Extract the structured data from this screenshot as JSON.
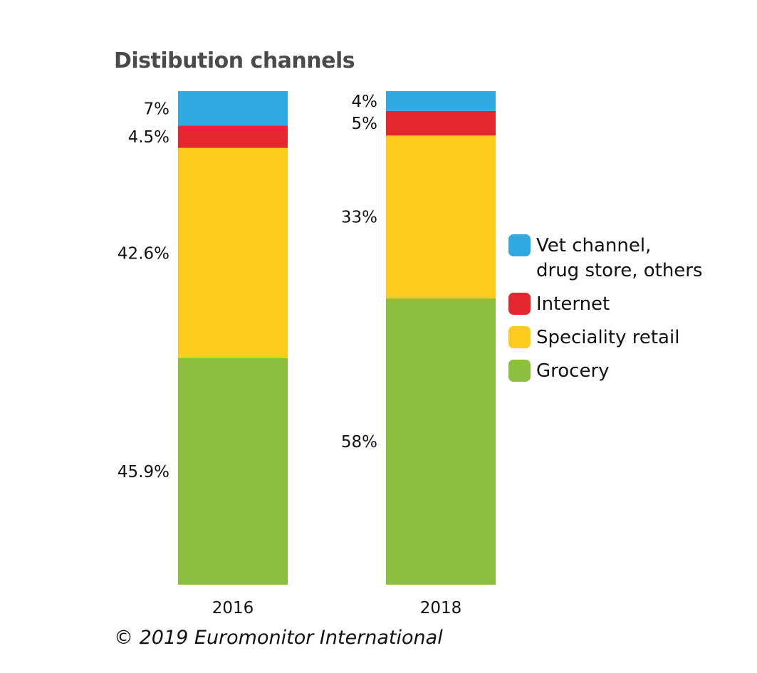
{
  "chart_data": {
    "type": "bar",
    "stacked": true,
    "title": "Distibution channels",
    "categories": [
      "2016",
      "2018"
    ],
    "series": [
      {
        "name": "Grocery",
        "color": "#8cbf3f",
        "values": [
          45.9,
          58
        ],
        "labels": [
          "45.9%",
          "58%"
        ]
      },
      {
        "name": "Speciality retail",
        "color": "#fdcb1b",
        "values": [
          42.6,
          33
        ],
        "labels": [
          "42.6%",
          "33%"
        ]
      },
      {
        "name": "Internet",
        "color": "#e4272e",
        "values": [
          4.5,
          5
        ],
        "labels": [
          "4.5%",
          "5%"
        ]
      },
      {
        "name": "Vet channel,\ndrug store, others",
        "color": "#2fa9e0",
        "values": [
          7,
          4
        ],
        "labels": [
          "7%",
          "4%"
        ]
      }
    ],
    "ylim": [
      0,
      100
    ],
    "legend_position": "right",
    "grid": false,
    "xlabel": "",
    "ylabel": ""
  },
  "footer": {
    "copyright": "© 2019 Euromonitor International"
  }
}
